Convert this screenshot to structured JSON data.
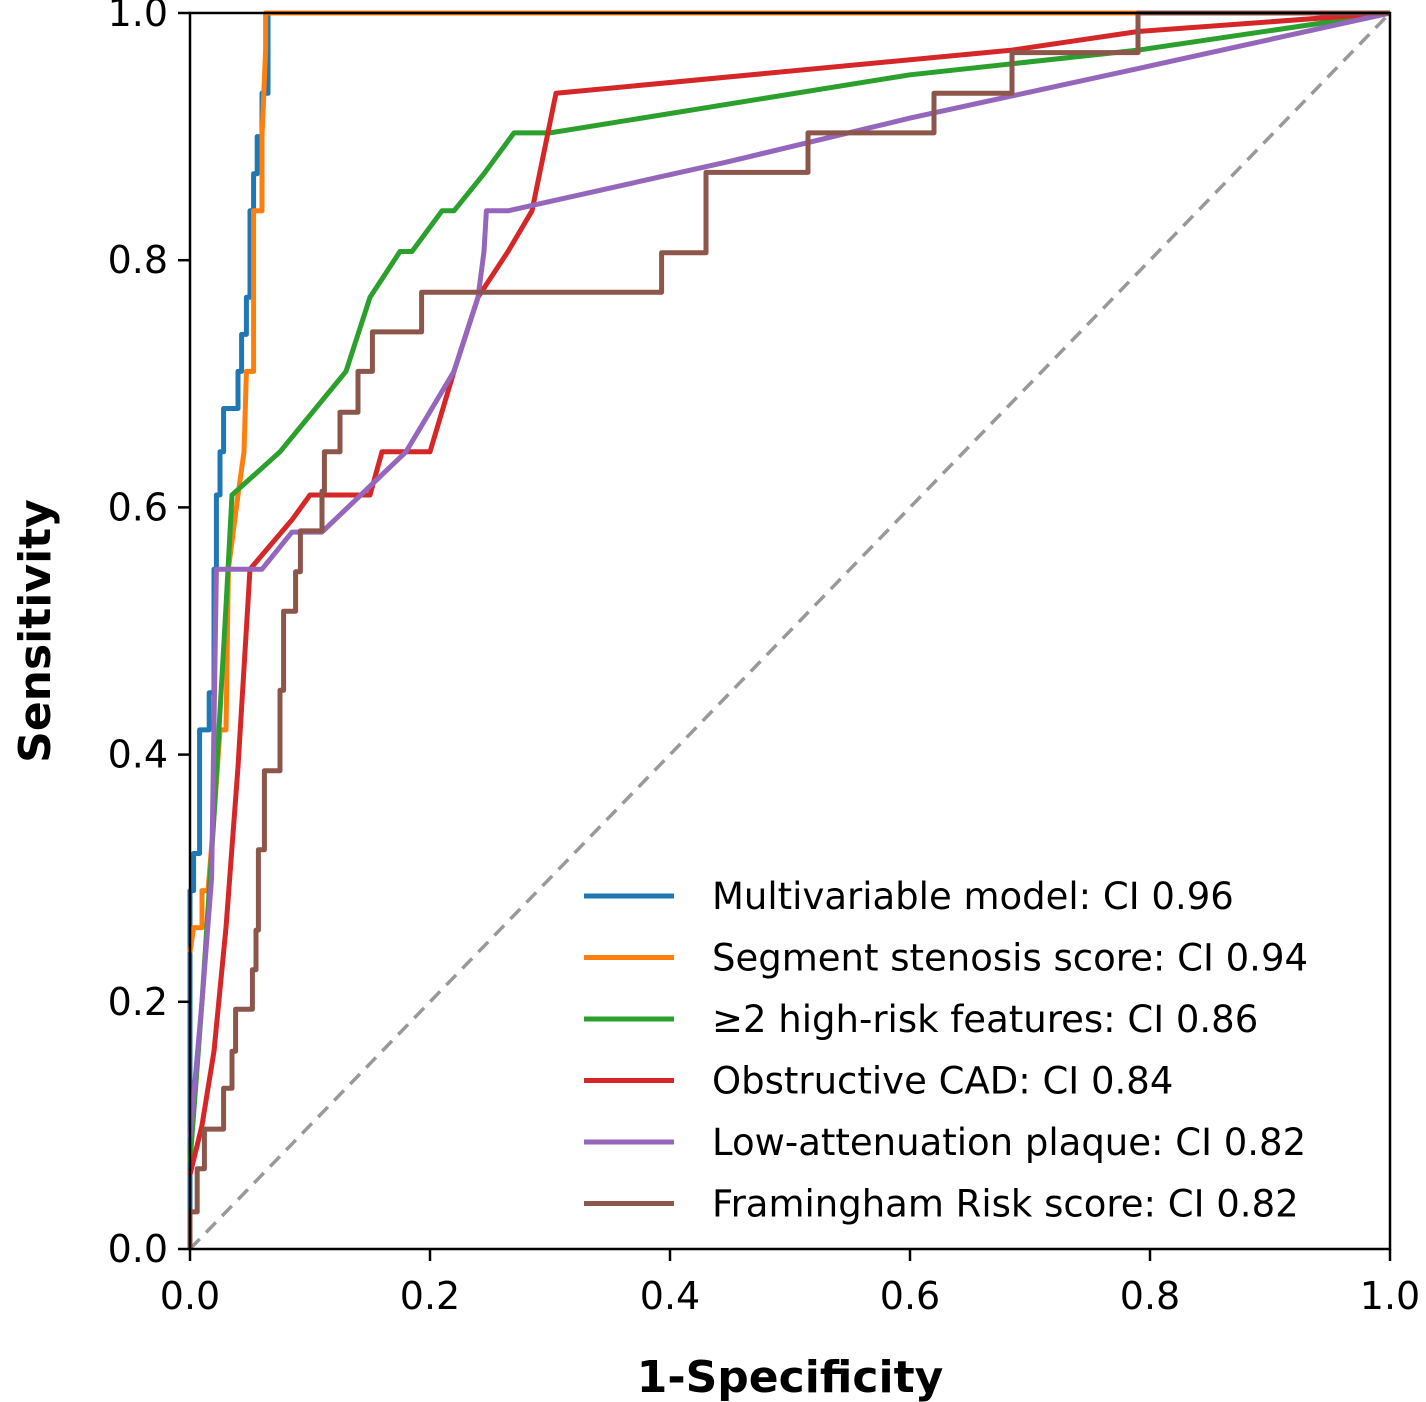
{
  "chart_data": {
    "type": "line",
    "title": "",
    "xlabel": "1-Specificity",
    "ylabel": "Sensitivity",
    "xlim": [
      0,
      1
    ],
    "ylim": [
      0,
      1
    ],
    "x_ticks": [
      "0.0",
      "0.2",
      "0.4",
      "0.6",
      "0.8",
      "1.0"
    ],
    "y_ticks": [
      "0.0",
      "0.2",
      "0.4",
      "0.6",
      "0.8",
      "1.0"
    ],
    "grid": false,
    "legend_position": "bottom-right",
    "reference_line": {
      "style": "dashed",
      "color": "#999999",
      "points": [
        [
          0,
          0
        ],
        [
          1,
          1
        ]
      ]
    },
    "series": [
      {
        "name": "Multivariable model: CI 0.96",
        "color": "#1f77b4",
        "points": [
          [
            0,
            0
          ],
          [
            0,
            0.29
          ],
          [
            0.003,
            0.29
          ],
          [
            0.003,
            0.32
          ],
          [
            0.008,
            0.32
          ],
          [
            0.008,
            0.42
          ],
          [
            0.016,
            0.42
          ],
          [
            0.016,
            0.45
          ],
          [
            0.02,
            0.45
          ],
          [
            0.02,
            0.55
          ],
          [
            0.022,
            0.55
          ],
          [
            0.022,
            0.61
          ],
          [
            0.025,
            0.61
          ],
          [
            0.025,
            0.645
          ],
          [
            0.028,
            0.645
          ],
          [
            0.028,
            0.68
          ],
          [
            0.04,
            0.68
          ],
          [
            0.04,
            0.71
          ],
          [
            0.043,
            0.71
          ],
          [
            0.043,
            0.74
          ],
          [
            0.047,
            0.74
          ],
          [
            0.047,
            0.77
          ],
          [
            0.05,
            0.77
          ],
          [
            0.05,
            0.84
          ],
          [
            0.053,
            0.84
          ],
          [
            0.053,
            0.87
          ],
          [
            0.056,
            0.87
          ],
          [
            0.056,
            0.9
          ],
          [
            0.06,
            0.9
          ],
          [
            0.06,
            0.935
          ],
          [
            0.065,
            0.935
          ],
          [
            0.065,
            1.0
          ],
          [
            0.065,
            1.0
          ]
        ]
      },
      {
        "name": "Segment stenosis score: CI 0.94",
        "color": "#ff7f0e",
        "points": [
          [
            0,
            0.24
          ],
          [
            0.003,
            0.26
          ],
          [
            0.01,
            0.26
          ],
          [
            0.01,
            0.29
          ],
          [
            0.015,
            0.29
          ],
          [
            0.02,
            0.35
          ],
          [
            0.025,
            0.42
          ],
          [
            0.03,
            0.42
          ],
          [
            0.032,
            0.55
          ],
          [
            0.04,
            0.61
          ],
          [
            0.045,
            0.645
          ],
          [
            0.047,
            0.71
          ],
          [
            0.053,
            0.71
          ],
          [
            0.053,
            0.84
          ],
          [
            0.06,
            0.84
          ],
          [
            0.06,
            0.9
          ],
          [
            0.063,
            0.97
          ],
          [
            0.063,
            1.0
          ],
          [
            0.79,
            1.0
          ],
          [
            1.0,
            1.0
          ]
        ]
      },
      {
        "name": "≥2 high-risk features: CI 0.86",
        "color": "#2ca02c",
        "points": [
          [
            0,
            0.07
          ],
          [
            0.01,
            0.2
          ],
          [
            0.02,
            0.35
          ],
          [
            0.03,
            0.52
          ],
          [
            0.035,
            0.61
          ],
          [
            0.075,
            0.645
          ],
          [
            0.13,
            0.71
          ],
          [
            0.15,
            0.77
          ],
          [
            0.175,
            0.807
          ],
          [
            0.185,
            0.807
          ],
          [
            0.21,
            0.84
          ],
          [
            0.22,
            0.84
          ],
          [
            0.245,
            0.87
          ],
          [
            0.27,
            0.903
          ],
          [
            0.3,
            0.903
          ],
          [
            0.6,
            0.95
          ],
          [
            0.79,
            0.97
          ],
          [
            1.0,
            1.0
          ]
        ]
      },
      {
        "name": "Obstructive CAD: CI 0.84",
        "color": "#d62728",
        "points": [
          [
            0,
            0.06
          ],
          [
            0.01,
            0.1
          ],
          [
            0.02,
            0.16
          ],
          [
            0.03,
            0.26
          ],
          [
            0.04,
            0.39
          ],
          [
            0.05,
            0.55
          ],
          [
            0.085,
            0.59
          ],
          [
            0.1,
            0.61
          ],
          [
            0.15,
            0.61
          ],
          [
            0.16,
            0.645
          ],
          [
            0.2,
            0.645
          ],
          [
            0.22,
            0.71
          ],
          [
            0.24,
            0.77
          ],
          [
            0.265,
            0.807
          ],
          [
            0.285,
            0.84
          ],
          [
            0.305,
            0.935
          ],
          [
            0.685,
            0.97
          ],
          [
            0.79,
            0.985
          ],
          [
            1.0,
            1.0
          ]
        ]
      },
      {
        "name": "Low-attenuation plaque: CI 0.82",
        "color": "#9467bd",
        "points": [
          [
            0,
            0.09
          ],
          [
            0.01,
            0.2
          ],
          [
            0.018,
            0.3
          ],
          [
            0.022,
            0.55
          ],
          [
            0.06,
            0.55
          ],
          [
            0.085,
            0.58
          ],
          [
            0.11,
            0.58
          ],
          [
            0.18,
            0.645
          ],
          [
            0.22,
            0.71
          ],
          [
            0.24,
            0.77
          ],
          [
            0.245,
            0.807
          ],
          [
            0.247,
            0.84
          ],
          [
            0.265,
            0.84
          ],
          [
            0.45,
            0.88
          ],
          [
            0.6,
            0.915
          ],
          [
            0.79,
            0.955
          ],
          [
            1.0,
            1.0
          ]
        ]
      },
      {
        "name": "Framingham Risk score: CI 0.82",
        "color": "#8c564b",
        "points": [
          [
            0,
            0
          ],
          [
            0,
            0.03
          ],
          [
            0.006,
            0.03
          ],
          [
            0.006,
            0.065
          ],
          [
            0.012,
            0.065
          ],
          [
            0.012,
            0.097
          ],
          [
            0.028,
            0.097
          ],
          [
            0.028,
            0.13
          ],
          [
            0.035,
            0.13
          ],
          [
            0.035,
            0.16
          ],
          [
            0.038,
            0.16
          ],
          [
            0.038,
            0.194
          ],
          [
            0.052,
            0.194
          ],
          [
            0.052,
            0.226
          ],
          [
            0.055,
            0.226
          ],
          [
            0.055,
            0.258
          ],
          [
            0.057,
            0.258
          ],
          [
            0.057,
            0.323
          ],
          [
            0.062,
            0.323
          ],
          [
            0.062,
            0.387
          ],
          [
            0.075,
            0.387
          ],
          [
            0.075,
            0.452
          ],
          [
            0.078,
            0.452
          ],
          [
            0.078,
            0.516
          ],
          [
            0.088,
            0.516
          ],
          [
            0.088,
            0.548
          ],
          [
            0.092,
            0.548
          ],
          [
            0.092,
            0.581
          ],
          [
            0.11,
            0.581
          ],
          [
            0.11,
            0.613
          ],
          [
            0.112,
            0.613
          ],
          [
            0.112,
            0.645
          ],
          [
            0.125,
            0.645
          ],
          [
            0.125,
            0.677
          ],
          [
            0.14,
            0.677
          ],
          [
            0.14,
            0.71
          ],
          [
            0.152,
            0.71
          ],
          [
            0.152,
            0.742
          ],
          [
            0.193,
            0.742
          ],
          [
            0.193,
            0.774
          ],
          [
            0.393,
            0.774
          ],
          [
            0.393,
            0.806
          ],
          [
            0.43,
            0.806
          ],
          [
            0.43,
            0.871
          ],
          [
            0.515,
            0.871
          ],
          [
            0.515,
            0.903
          ],
          [
            0.62,
            0.903
          ],
          [
            0.62,
            0.935
          ],
          [
            0.685,
            0.935
          ],
          [
            0.685,
            0.968
          ],
          [
            0.79,
            0.968
          ],
          [
            0.79,
            1.0
          ],
          [
            1.0,
            1.0
          ]
        ]
      }
    ]
  }
}
